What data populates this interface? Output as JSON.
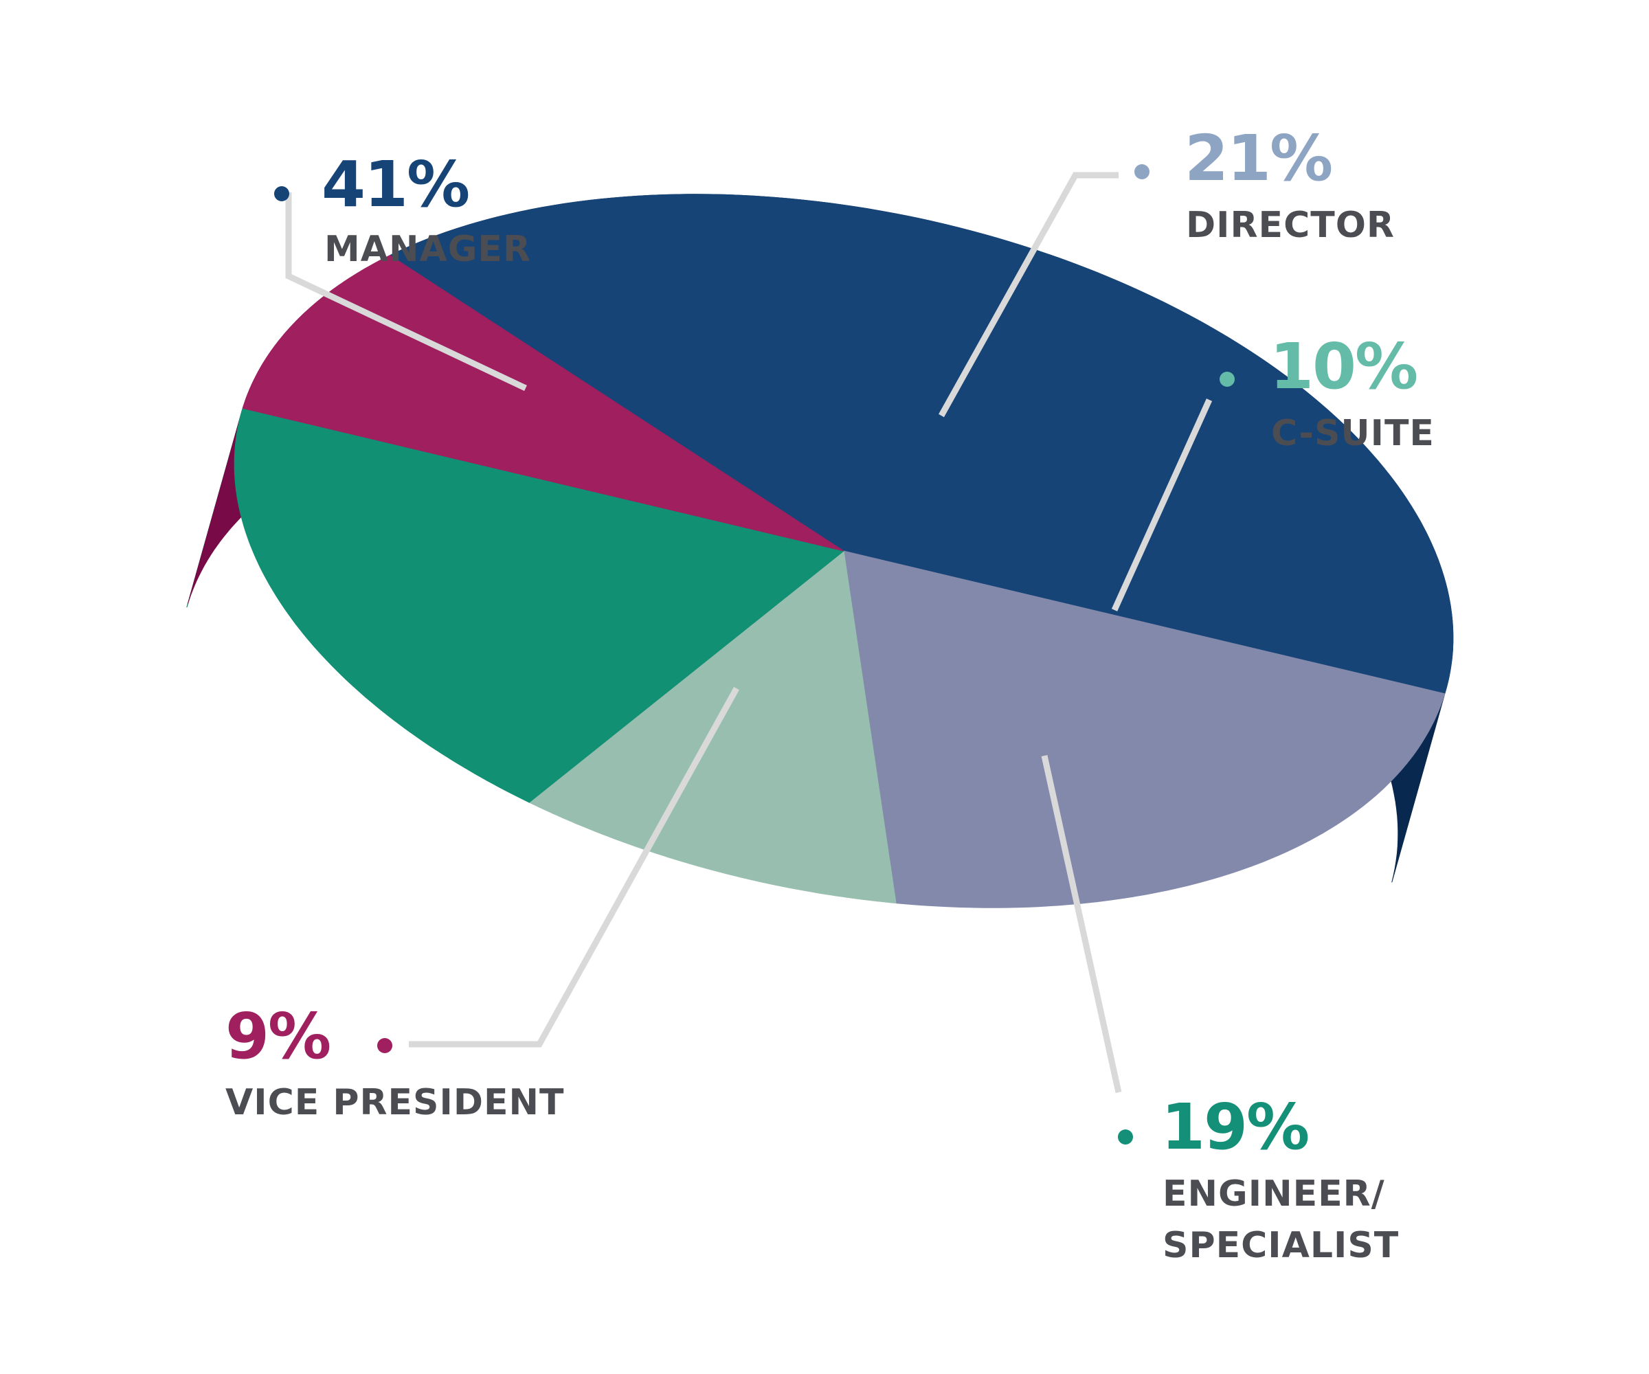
{
  "chart_data": {
    "type": "pie",
    "title": "",
    "slices": [
      {
        "label": "MANAGER",
        "value": 41,
        "display": "41%",
        "color": "#164477",
        "side_color": "#09284f",
        "label_color": "#164477"
      },
      {
        "label": "DIRECTOR",
        "value": 21,
        "display": "21%",
        "color": "#8389ab",
        "side_color": "#5e6488",
        "label_color": "#8ea4c3"
      },
      {
        "label": "C-SUITE",
        "value": 10,
        "display": "10%",
        "color": "#98beaf",
        "side_color": "#6f9a89",
        "label_color": "#64bca8"
      },
      {
        "label": "ENGINEER/ SPECIALIST",
        "label_lines": [
          "ENGINEER/",
          "SPECIALIST"
        ],
        "value": 19,
        "display": "19%",
        "color": "#119073",
        "side_color": "#0c6f58",
        "label_color": "#139077"
      },
      {
        "label": "VICE PRESIDENT",
        "value": 9,
        "display": "9%",
        "color": "#9f1f5f",
        "side_color": "#770a47",
        "label_color": "#9f1f5f"
      }
    ],
    "label_text_color": "#4b4d52",
    "leader_color": "#d9d9d9",
    "legend": "none"
  }
}
